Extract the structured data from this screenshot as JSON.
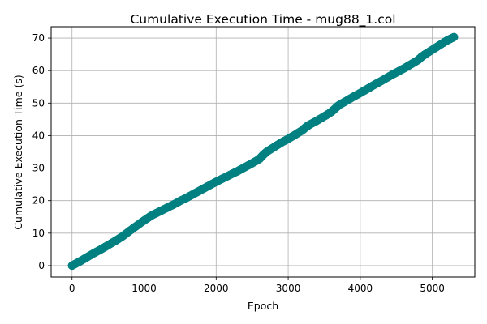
{
  "chart_data": {
    "type": "scatter",
    "title": "Cumulative Execution Time - mug88_1.col",
    "xlabel": "Epoch",
    "ylabel": "Cumulative Execution Time (s)",
    "xlim": [
      -290,
      5590
    ],
    "ylim": [
      -3.5,
      73.5
    ],
    "xticks": [
      0,
      1000,
      2000,
      3000,
      4000,
      5000
    ],
    "yticks": [
      0,
      10,
      20,
      30,
      40,
      50,
      60,
      70
    ],
    "grid": true,
    "legend": "none",
    "series": [
      {
        "color": "#008080",
        "x": [
          0,
          100,
          200,
          300,
          400,
          500,
          600,
          700,
          800,
          900,
          1000,
          1100,
          1200,
          1300,
          1400,
          1500,
          1600,
          1700,
          1800,
          1900,
          2000,
          2100,
          2200,
          2300,
          2400,
          2500,
          2600,
          2650,
          2700,
          2800,
          2900,
          3000,
          3100,
          3200,
          3250,
          3300,
          3400,
          3500,
          3600,
          3650,
          3700,
          3800,
          3900,
          4000,
          4100,
          4200,
          4300,
          4400,
          4500,
          4600,
          4700,
          4800,
          4850,
          4900,
          5000,
          5100,
          5200,
          5300
        ],
        "y": [
          0.0,
          1.2,
          2.5,
          3.8,
          5.0,
          6.3,
          7.6,
          9.0,
          10.7,
          12.3,
          13.9,
          15.4,
          16.5,
          17.6,
          18.7,
          19.9,
          21.0,
          22.2,
          23.4,
          24.6,
          25.8,
          26.9,
          28.0,
          29.1,
          30.3,
          31.5,
          32.8,
          34.0,
          35.0,
          36.4,
          37.8,
          39.0,
          40.3,
          41.7,
          42.7,
          43.4,
          44.6,
          45.9,
          47.3,
          48.3,
          49.3,
          50.6,
          51.9,
          53.1,
          54.4,
          55.7,
          56.9,
          58.2,
          59.4,
          60.6,
          61.9,
          63.2,
          64.2,
          65.0,
          66.4,
          67.8,
          69.2,
          70.3
        ]
      }
    ]
  }
}
